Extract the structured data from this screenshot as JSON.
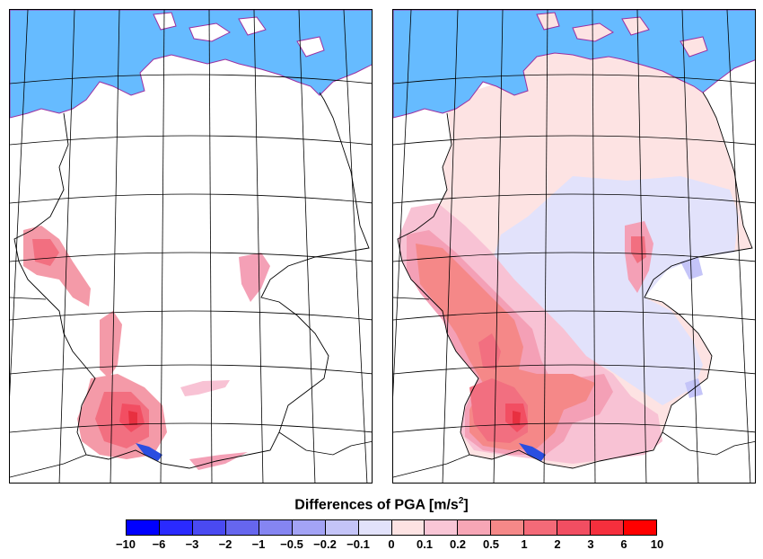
{
  "legend": {
    "title": "Differences of PGA [m/s",
    "title_sup": "2",
    "title_end": "]",
    "ticks": [
      "−10",
      "−6",
      "−3",
      "−2",
      "−1",
      "−0.5",
      "−0.2",
      "−0.1",
      "0",
      "0.1",
      "0.2",
      "0.5",
      "1",
      "2",
      "3",
      "6",
      "10"
    ],
    "colors": [
      "#0000ff",
      "#2a2aff",
      "#4a4af2",
      "#6666ee",
      "#8585f2",
      "#a3a3f5",
      "#c4c4f8",
      "#e2e2fb",
      "#fde3e3",
      "#f9c6d6",
      "#f7a6b6",
      "#f58888",
      "#f46a78",
      "#f24e62",
      "#f52f3d",
      "#ff0000"
    ]
  },
  "maps": [
    {
      "name": "left-map",
      "variant": "differences-a"
    },
    {
      "name": "right-map",
      "variant": "differences-b"
    }
  ],
  "colors": {
    "sea": "#66bbff",
    "coast": "#9b2fa0",
    "land": "#ffffff"
  }
}
